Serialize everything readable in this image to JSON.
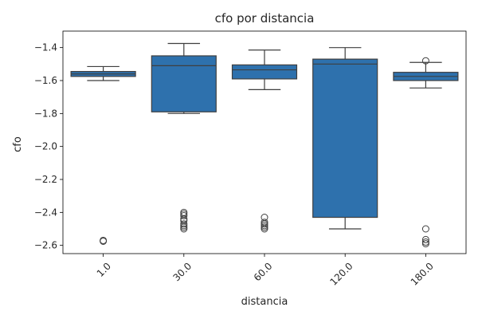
{
  "chart_data": {
    "type": "box",
    "title": "cfo por distancia",
    "xlabel": "distancia",
    "ylabel": "cfo",
    "categories": [
      "1.0",
      "30.0",
      "60.0",
      "120.0",
      "180.0"
    ],
    "ylim": [
      -2.65,
      -1.3
    ],
    "yticks": [
      -1.4,
      -1.6,
      -1.8,
      -2.0,
      -2.2,
      -2.4,
      -2.6
    ],
    "ytick_labels": [
      "−1.4",
      "−1.6",
      "−1.8",
      "−2.0",
      "−2.2",
      "−2.4",
      "−2.6"
    ],
    "box_color": "#2e71ad",
    "line_color": "#3f3f3f",
    "boxes": [
      {
        "category": "1.0",
        "whisker_low": -1.6,
        "q1": -1.575,
        "median": -1.56,
        "q3": -1.545,
        "whisker_high": -1.515,
        "outliers": [
          -2.57,
          -2.575
        ]
      },
      {
        "category": "30.0",
        "whisker_low": -1.8,
        "q1": -1.79,
        "median": -1.51,
        "q3": -1.45,
        "whisker_high": -1.375,
        "outliers": [
          -2.4,
          -2.41,
          -2.42,
          -2.44,
          -2.45,
          -2.47,
          -2.48,
          -2.49,
          -2.5
        ]
      },
      {
        "category": "60.0",
        "whisker_low": -1.655,
        "q1": -1.59,
        "median": -1.535,
        "q3": -1.505,
        "whisker_high": -1.415,
        "outliers": [
          -2.43,
          -2.46,
          -2.47,
          -2.48,
          -2.49,
          -2.5
        ]
      },
      {
        "category": "120.0",
        "whisker_low": -2.5,
        "q1": -2.43,
        "median": -1.5,
        "q3": -1.47,
        "whisker_high": -1.4,
        "outliers": []
      },
      {
        "category": "180.0",
        "whisker_low": -1.645,
        "q1": -1.6,
        "median": -1.575,
        "q3": -1.55,
        "whisker_high": -1.49,
        "outliers": [
          -1.48,
          -2.5,
          -2.565,
          -2.58,
          -2.59
        ]
      }
    ]
  }
}
